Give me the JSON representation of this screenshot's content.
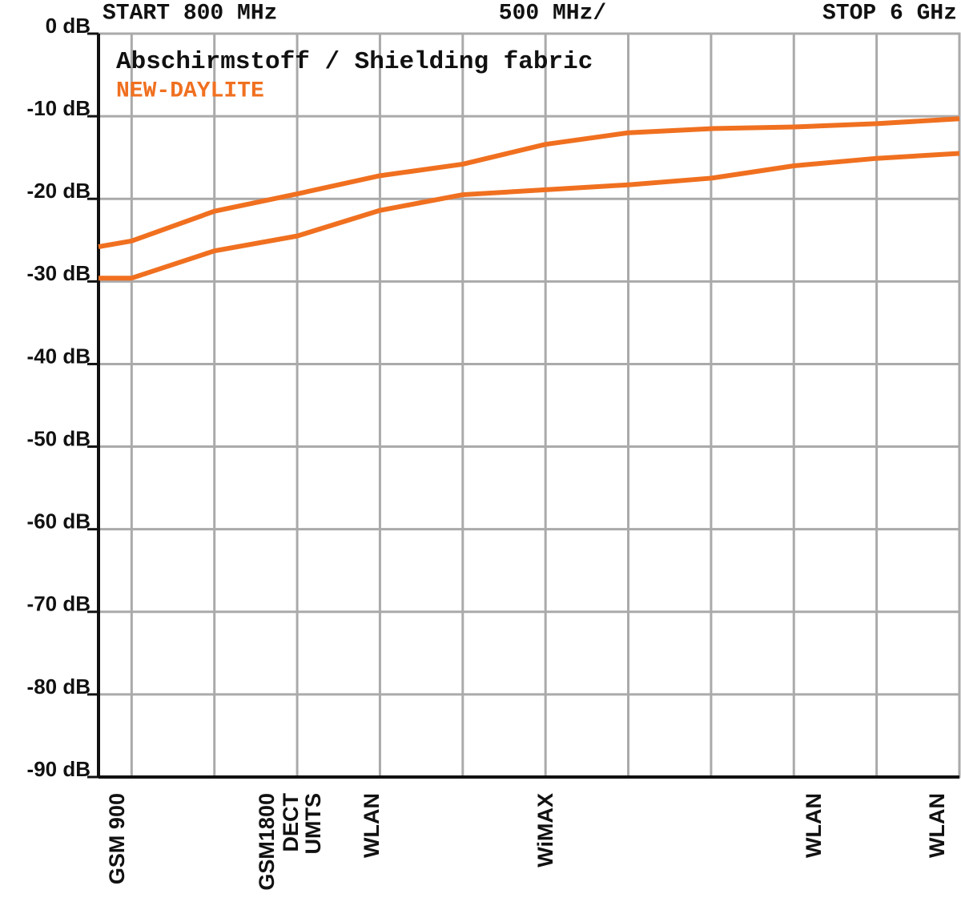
{
  "chart_data": {
    "type": "line",
    "title": "Abschirmstoff / Shielding fabric",
    "header_left": "START 800 MHz",
    "header_center": "500 MHz/",
    "header_right": "STOP 6 GHz",
    "x": [
      800,
      1000,
      1500,
      2000,
      2500,
      3000,
      3500,
      4000,
      4500,
      5000,
      5500,
      6000
    ],
    "series": [
      {
        "name": "NEW-DAYLITE",
        "color": "#f07020",
        "values": [
          -25.8,
          -25.1,
          -21.5,
          -19.4,
          -17.2,
          -15.8,
          -13.4,
          -12.0,
          -11.5,
          -11.3,
          -10.9,
          -10.3
        ]
      },
      {
        "color": "#f07020",
        "values": [
          -29.6,
          -29.6,
          -26.3,
          -24.5,
          -21.4,
          -19.5,
          -18.9,
          -18.3,
          -17.5,
          -16.0,
          -15.1,
          -14.5
        ]
      }
    ],
    "xlim": [
      800,
      6000
    ],
    "xticks": [
      1000,
      1500,
      2000,
      2500,
      3000,
      3500,
      4000,
      4500,
      5000,
      5500
    ],
    "ylim": [
      -90,
      0
    ],
    "yticks": [
      {
        "value": 0,
        "label": "0 dB"
      },
      {
        "value": -10,
        "label": "-10 dB"
      },
      {
        "value": -20,
        "label": "-20 dB"
      },
      {
        "value": -30,
        "label": "-30 dB"
      },
      {
        "value": -40,
        "label": "-40 dB"
      },
      {
        "value": -50,
        "label": "-50 dB"
      },
      {
        "value": -60,
        "label": "-60 dB"
      },
      {
        "value": -70,
        "label": "-70 dB"
      },
      {
        "value": -80,
        "label": "-80 dB"
      },
      {
        "value": -90,
        "label": "-90 dB"
      }
    ],
    "grid": true,
    "band_labels": [
      {
        "x": 921,
        "label": "GSM 900"
      },
      {
        "x": 1825,
        "label": "GSM1800"
      },
      {
        "x": 1971,
        "label": "DECT"
      },
      {
        "x": 2106,
        "label": "UMTS"
      },
      {
        "x": 2459,
        "label": "WLAN"
      },
      {
        "x": 3509,
        "label": "WiMAX"
      },
      {
        "x": 5129,
        "label": "WLAN"
      },
      {
        "x": 5874,
        "label": "WLAN"
      }
    ]
  }
}
